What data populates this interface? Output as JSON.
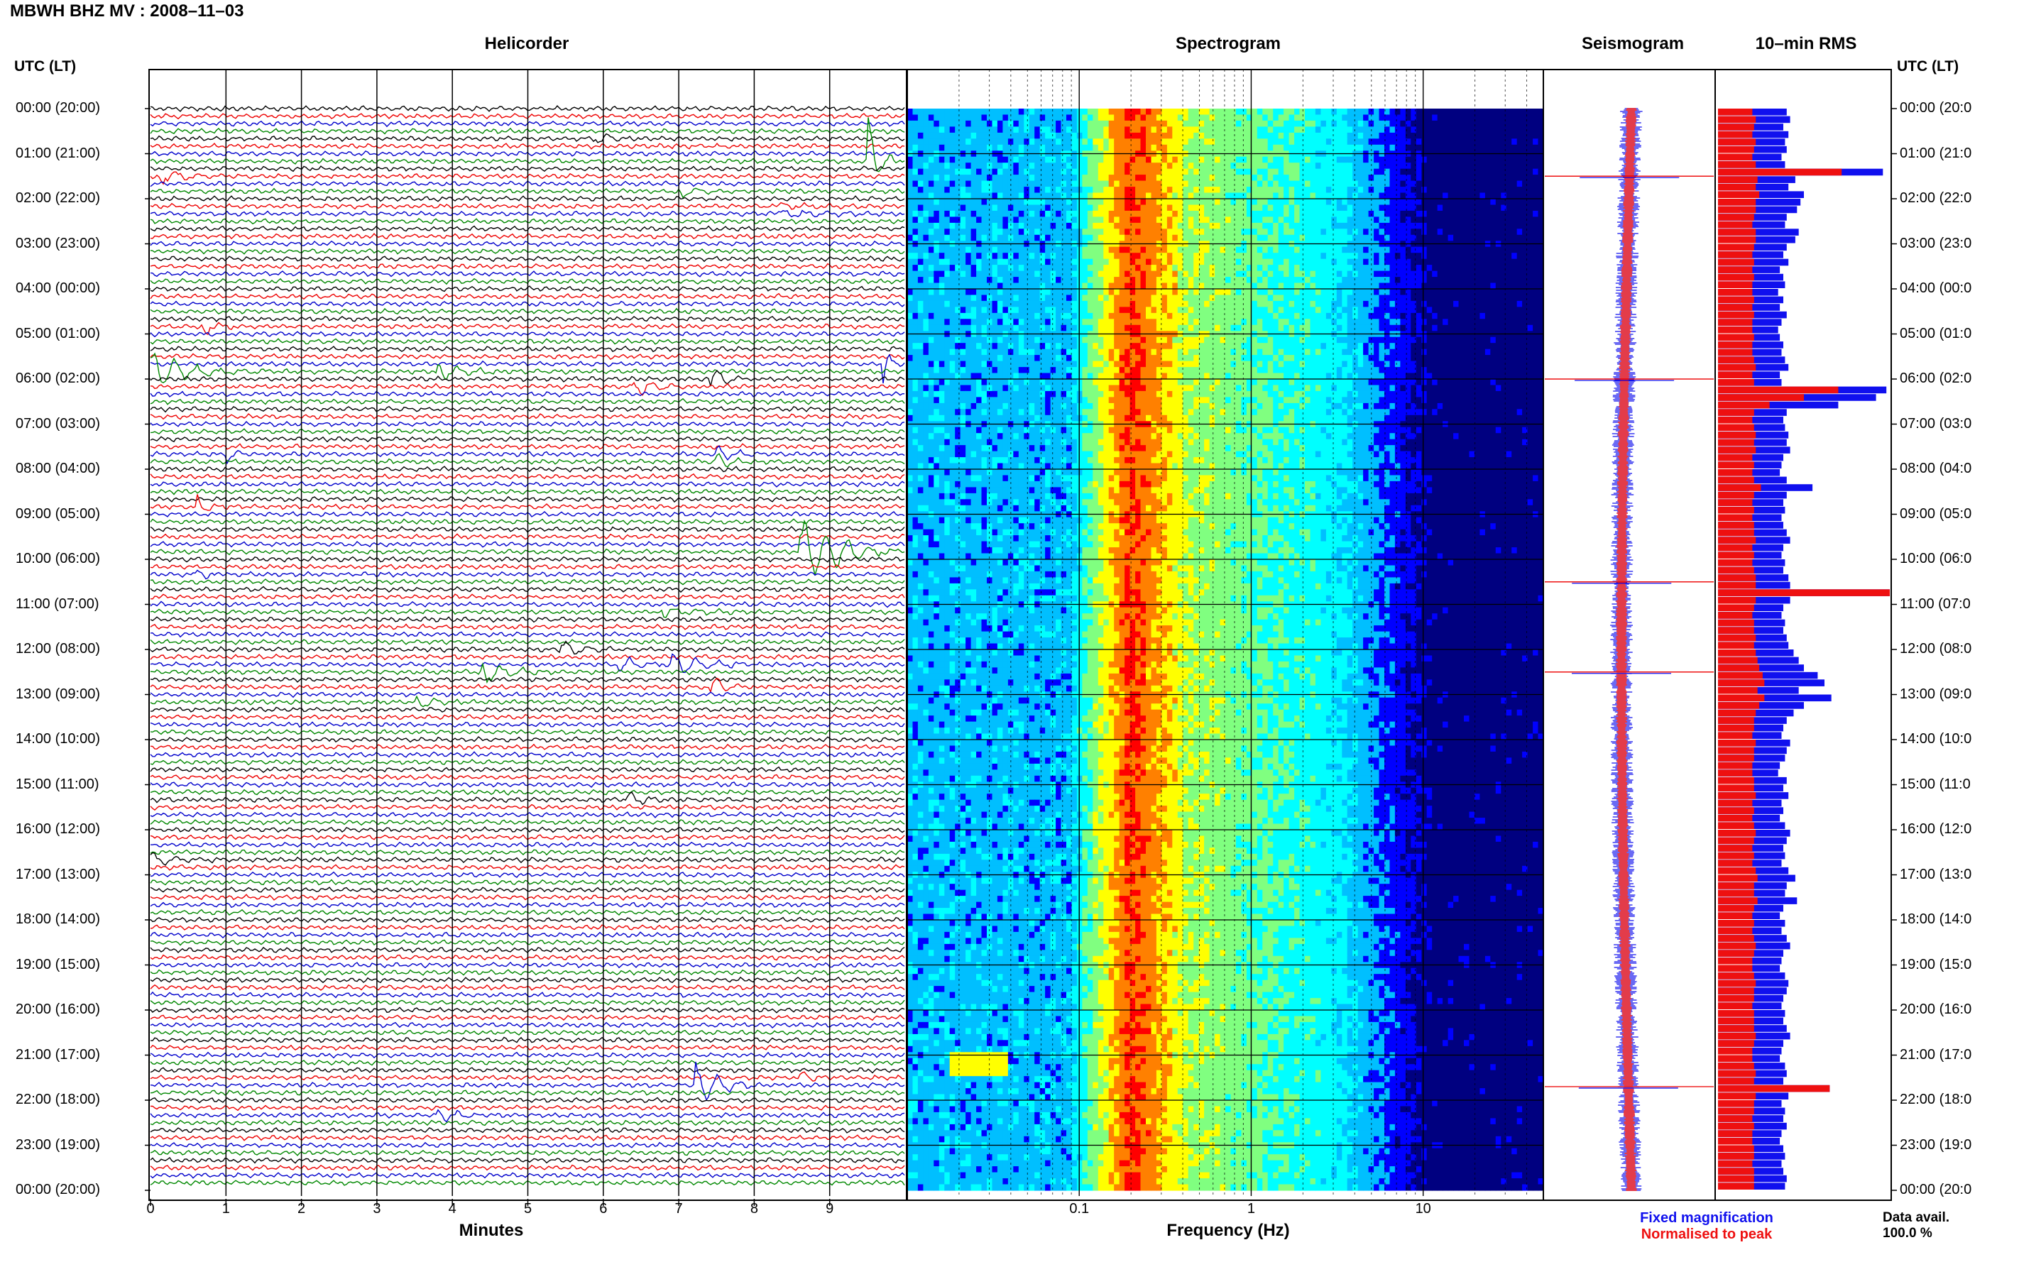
{
  "title": "MBWH BHZ MV : 2008–11–03",
  "panels": {
    "helicorder": "Helicorder",
    "spectrogram": "Spectrogram",
    "seismogram": "Seismogram",
    "rms": "10–min RMS"
  },
  "time_axis_label": "UTC (LT)",
  "time_labels": [
    "00:00 (20:00)",
    "01:00 (21:00)",
    "02:00 (22:00)",
    "03:00 (23:00)",
    "04:00 (00:00)",
    "05:00 (01:00)",
    "06:00 (02:00)",
    "07:00 (03:00)",
    "08:00 (04:00)",
    "09:00 (05:00)",
    "10:00 (06:00)",
    "11:00 (07:00)",
    "12:00 (08:00)",
    "13:00 (09:00)",
    "14:00 (10:00)",
    "15:00 (11:00)",
    "16:00 (12:00)",
    "17:00 (13:00)",
    "18:00 (14:00)",
    "19:00 (15:00)",
    "20:00 (16:00)",
    "21:00 (17:00)",
    "22:00 (18:00)",
    "23:00 (19:00)",
    "00:00 (20:00)"
  ],
  "right_time_labels": [
    "00:00 (20:0",
    "01:00 (21:0",
    "02:00 (22:0",
    "03:00 (23:0",
    "04:00 (00:0",
    "05:00 (01:0",
    "06:00 (02:0",
    "07:00 (03:0",
    "08:00 (04:0",
    "09:00 (05:0",
    "10:00 (06:0",
    "11:00 (07:0",
    "12:00 (08:0",
    "13:00 (09:0",
    "14:00 (10:0",
    "15:00 (11:0",
    "16:00 (12:0",
    "17:00 (13:0",
    "18:00 (14:0",
    "19:00 (15:0",
    "20:00 (16:0",
    "21:00 (17:0",
    "22:00 (18:0",
    "23:00 (19:0",
    "00:00 (20:0"
  ],
  "helicorder_xlabel": "Minutes",
  "helicorder_xticks": [
    "0",
    "1",
    "2",
    "3",
    "4",
    "5",
    "6",
    "7",
    "8",
    "9"
  ],
  "spectrogram_xlabel": "Frequency (Hz)",
  "spectrogram_xticks": [
    "0.1",
    "1",
    "10"
  ],
  "legend": {
    "fixed": "Fixed magnification",
    "normalised": "Normalised to peak"
  },
  "availability": {
    "label": "Data avail.",
    "value": "100.0 %"
  },
  "colors": {
    "fixed": "#1010ee",
    "normalised": "#ee1010"
  },
  "chart_data": [
    {
      "type": "line",
      "name_hint": "helicorder",
      "x_range_minutes": [
        0,
        10
      ],
      "trace_colors": [
        "#000000",
        "#ee0000",
        "#0000cc",
        "#008800"
      ],
      "events": [
        {
          "hour": 0.6,
          "minute": 5.9,
          "amp": 0.8,
          "dur": 0.6
        },
        {
          "hour": 1.2,
          "minute": 9.5,
          "amp": 4.5,
          "dur": 0.4
        },
        {
          "hour": 1.45,
          "minute": 0.1,
          "amp": 1.1,
          "dur": 0.9
        },
        {
          "hour": 1.85,
          "minute": 7.0,
          "amp": 1.0,
          "dur": 0.6
        },
        {
          "hour": 2.25,
          "minute": 8.3,
          "amp": 0.7,
          "dur": 1.2
        },
        {
          "hour": 4.85,
          "minute": 0.7,
          "amp": 1.0,
          "dur": 0.5
        },
        {
          "hour": 5.7,
          "minute": 9.7,
          "amp": 4.0,
          "dur": 0.2
        },
        {
          "hour": 5.85,
          "minute": 0.0,
          "amp": 2.2,
          "dur": 1.5
        },
        {
          "hour": 5.85,
          "minute": 3.8,
          "amp": 1.1,
          "dur": 0.8
        },
        {
          "hour": 5.95,
          "minute": 7.4,
          "amp": 1.4,
          "dur": 0.8
        },
        {
          "hour": 6.1,
          "minute": 6.4,
          "amp": 1.0,
          "dur": 1.1
        },
        {
          "hour": 7.7,
          "minute": 1.0,
          "amp": 1.0,
          "dur": 0.4
        },
        {
          "hour": 7.75,
          "minute": 7.5,
          "amp": 1.0,
          "dur": 0.5
        },
        {
          "hour": 8.8,
          "minute": 0.6,
          "amp": 1.0,
          "dur": 0.4
        },
        {
          "hour": 9.9,
          "minute": 8.6,
          "amp": 4.5,
          "dur": 1.3
        },
        {
          "hour": 10.3,
          "minute": 0.6,
          "amp": 1.0,
          "dur": 0.4
        },
        {
          "hour": 11.1,
          "minute": 6.8,
          "amp": 0.8,
          "dur": 1.0
        },
        {
          "hour": 11.95,
          "minute": 5.4,
          "amp": 1.2,
          "dur": 0.7
        },
        {
          "hour": 12.3,
          "minute": 6.2,
          "amp": 1.2,
          "dur": 1.0
        },
        {
          "hour": 12.35,
          "minute": 6.9,
          "amp": 1.4,
          "dur": 1.0
        },
        {
          "hour": 12.55,
          "minute": 4.4,
          "amp": 1.6,
          "dur": 0.8
        },
        {
          "hour": 12.85,
          "minute": 7.4,
          "amp": 1.3,
          "dur": 0.7
        },
        {
          "hour": 13.1,
          "minute": 3.5,
          "amp": 0.8,
          "dur": 0.6
        },
        {
          "hour": 15.4,
          "minute": 6.3,
          "amp": 0.8,
          "dur": 0.6
        },
        {
          "hour": 16.65,
          "minute": 0.0,
          "amp": 1.0,
          "dur": 1.0
        },
        {
          "hour": 21.6,
          "minute": 7.2,
          "amp": 2.5,
          "dur": 0.8
        },
        {
          "hour": 21.45,
          "minute": 8.6,
          "amp": 0.9,
          "dur": 0.5
        },
        {
          "hour": 22.35,
          "minute": 3.8,
          "amp": 0.8,
          "dur": 0.6
        }
      ]
    },
    {
      "type": "heatmap",
      "name_hint": "spectrogram",
      "x_scale": "log",
      "x_range_hz": [
        0.01,
        50
      ],
      "y_range_hours": [
        0,
        24
      ],
      "colormap": [
        "#000080",
        "#0000ff",
        "#00bfff",
        "#00ffff",
        "#80ff80",
        "#ffff00",
        "#ff8000",
        "#ff0000"
      ],
      "peak_frequency_hz": 0.2
    },
    {
      "type": "line",
      "name_hint": "seismogram",
      "series_colors": [
        "#1010ee",
        "#ee1010"
      ],
      "spike_hours": [
        1.5,
        6.0,
        10.5,
        12.5,
        21.7
      ]
    },
    {
      "type": "bar",
      "name_hint": "rms",
      "orientation": "horizontal",
      "interval_minutes": 10,
      "fixed_rms": [
        0.4,
        0.42,
        0.38,
        0.41,
        0.39,
        0.4,
        0.37,
        0.39,
        0.96,
        0.45,
        0.41,
        0.5,
        0.48,
        0.46,
        0.4,
        0.39,
        0.47,
        0.45,
        0.4,
        0.38,
        0.41,
        0.36,
        0.38,
        0.39,
        0.35,
        0.38,
        0.36,
        0.4,
        0.37,
        0.35,
        0.36,
        0.38,
        0.37,
        0.39,
        0.41,
        0.36,
        0.37,
        0.98,
        0.92,
        0.7,
        0.4,
        0.38,
        0.39,
        0.41,
        0.4,
        0.42,
        0.38,
        0.37,
        0.36,
        0.4,
        0.55,
        0.4,
        0.38,
        0.39,
        0.37,
        0.38,
        0.4,
        0.42,
        0.38,
        0.37,
        0.39,
        0.38,
        0.41,
        0.42,
        1.0,
        0.42,
        0.38,
        0.37,
        0.39,
        0.38,
        0.4,
        0.41,
        0.44,
        0.47,
        0.5,
        0.58,
        0.62,
        0.47,
        0.66,
        0.5,
        0.44,
        0.4,
        0.38,
        0.37,
        0.42,
        0.4,
        0.39,
        0.36,
        0.35,
        0.4,
        0.38,
        0.41,
        0.37,
        0.38,
        0.36,
        0.39,
        0.42,
        0.4,
        0.38,
        0.39,
        0.37,
        0.41,
        0.45,
        0.4,
        0.39,
        0.46,
        0.38,
        0.36,
        0.39,
        0.37,
        0.4,
        0.42,
        0.38,
        0.37,
        0.36,
        0.39,
        0.41,
        0.4,
        0.38,
        0.37,
        0.39,
        0.38,
        0.4,
        0.42,
        0.38,
        0.37,
        0.36,
        0.39,
        0.4,
        0.38,
        0.65,
        0.41,
        0.37,
        0.39,
        0.38,
        0.4,
        0.37,
        0.36,
        0.38,
        0.39,
        0.37,
        0.38,
        0.4,
        0.39
      ],
      "normalised_rms": [
        0.2,
        0.22,
        0.21,
        0.2,
        0.22,
        0.21,
        0.2,
        0.22,
        0.72,
        0.23,
        0.22,
        0.24,
        0.22,
        0.22,
        0.21,
        0.2,
        0.22,
        0.22,
        0.21,
        0.2,
        0.21,
        0.2,
        0.21,
        0.2,
        0.2,
        0.21,
        0.2,
        0.21,
        0.2,
        0.2,
        0.21,
        0.2,
        0.2,
        0.21,
        0.22,
        0.2,
        0.21,
        0.7,
        0.5,
        0.3,
        0.21,
        0.2,
        0.21,
        0.22,
        0.21,
        0.22,
        0.2,
        0.21,
        0.2,
        0.21,
        0.25,
        0.21,
        0.2,
        0.21,
        0.2,
        0.21,
        0.21,
        0.22,
        0.2,
        0.21,
        0.2,
        0.21,
        0.22,
        0.22,
        1.0,
        0.22,
        0.21,
        0.2,
        0.21,
        0.21,
        0.22,
        0.21,
        0.22,
        0.23,
        0.24,
        0.26,
        0.27,
        0.23,
        0.27,
        0.24,
        0.22,
        0.21,
        0.21,
        0.2,
        0.22,
        0.21,
        0.21,
        0.2,
        0.2,
        0.21,
        0.21,
        0.22,
        0.2,
        0.21,
        0.2,
        0.21,
        0.22,
        0.21,
        0.2,
        0.21,
        0.2,
        0.22,
        0.23,
        0.21,
        0.21,
        0.23,
        0.21,
        0.2,
        0.21,
        0.2,
        0.21,
        0.22,
        0.21,
        0.2,
        0.2,
        0.21,
        0.22,
        0.21,
        0.21,
        0.2,
        0.21,
        0.21,
        0.21,
        0.22,
        0.21,
        0.2,
        0.2,
        0.21,
        0.22,
        0.21,
        0.65,
        0.22,
        0.21,
        0.21,
        0.2,
        0.21,
        0.2,
        0.2,
        0.21,
        0.21,
        0.2,
        0.21,
        0.21,
        0.21
      ]
    }
  ]
}
